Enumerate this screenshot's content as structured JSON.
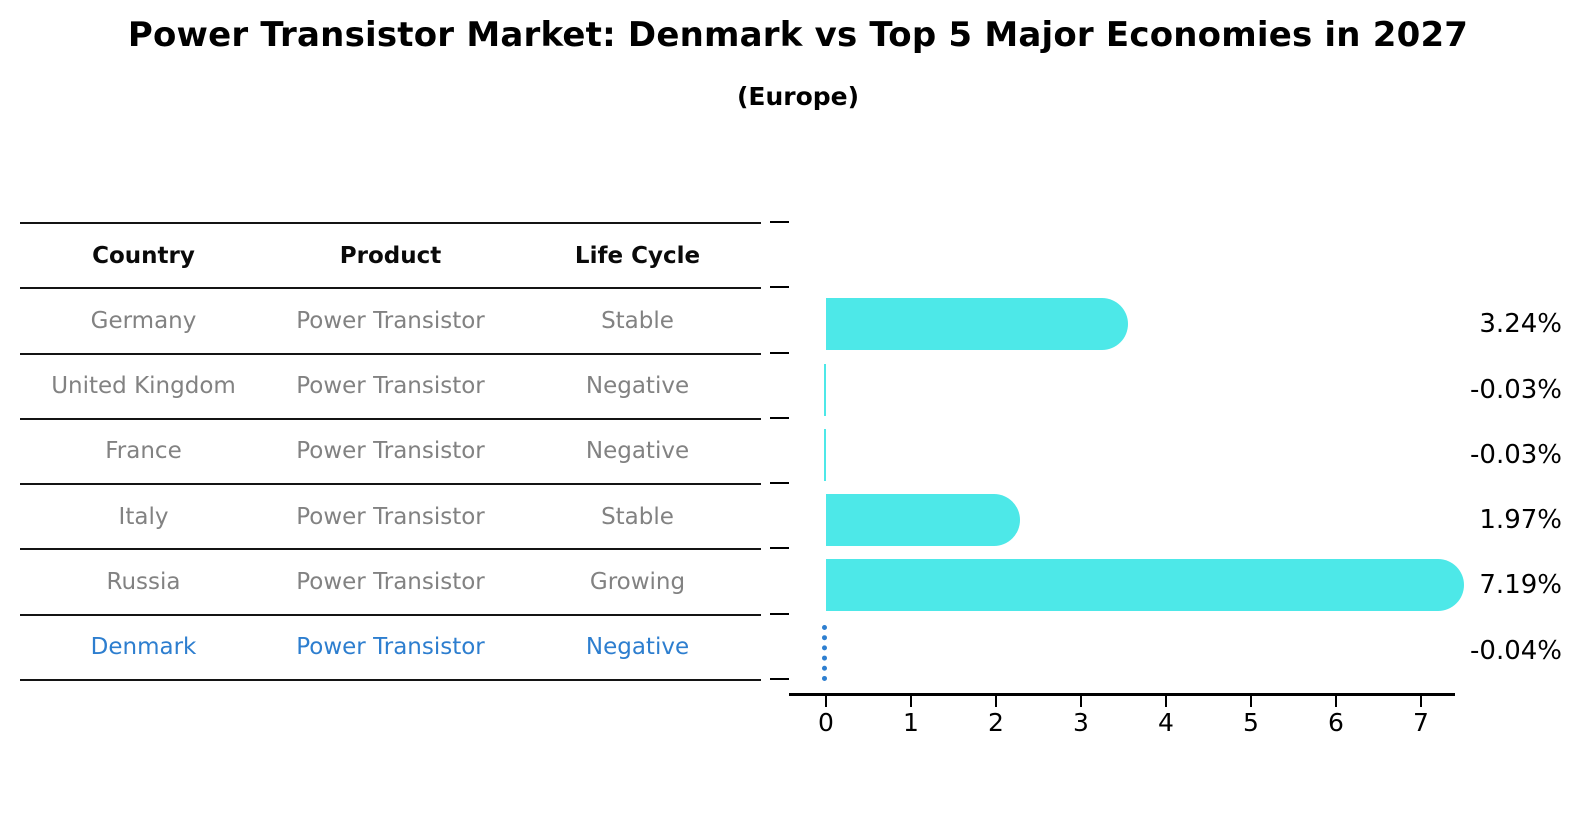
{
  "header": {
    "title": "Power Transistor Market: Denmark vs Top 5 Major Economies in 2027",
    "subtitle": "(Europe)"
  },
  "table": {
    "columns": [
      "Country",
      "Product",
      "Life Cycle"
    ],
    "rows": [
      {
        "country": "Germany",
        "product": "Power Transistor",
        "life_cycle": "Stable",
        "value": 3.24,
        "value_label": "3.24%",
        "highlight": false
      },
      {
        "country": "United Kingdom",
        "product": "Power Transistor",
        "life_cycle": "Negative",
        "value": -0.03,
        "value_label": "-0.03%",
        "highlight": false
      },
      {
        "country": "France",
        "product": "Power Transistor",
        "life_cycle": "Negative",
        "value": -0.03,
        "value_label": "-0.03%",
        "highlight": false
      },
      {
        "country": "Italy",
        "product": "Power Transistor",
        "life_cycle": "Stable",
        "value": 1.97,
        "value_label": "1.97%",
        "highlight": false
      },
      {
        "country": "Russia",
        "product": "Power Transistor",
        "life_cycle": "Growing",
        "value": 7.19,
        "value_label": "7.19%",
        "highlight": false
      },
      {
        "country": "Denmark",
        "product": "Power Transistor",
        "life_cycle": "Negative",
        "value": -0.04,
        "value_label": "-0.04%",
        "highlight": true
      }
    ]
  },
  "chart_data": {
    "type": "bar",
    "orientation": "horizontal",
    "title": "Power Transistor Market: Denmark vs Top 5 Major Economies in 2027",
    "subtitle": "(Europe)",
    "categories": [
      "Germany",
      "United Kingdom",
      "France",
      "Italy",
      "Russia",
      "Denmark"
    ],
    "values": [
      3.24,
      -0.03,
      -0.03,
      1.97,
      7.19,
      -0.04
    ],
    "value_labels": [
      "3.24%",
      "-0.03%",
      "-0.03%",
      "1.97%",
      "7.19%",
      "-0.04%"
    ],
    "unit": "percent CAGR",
    "x_ticks": [
      0,
      1,
      2,
      3,
      4,
      5,
      6,
      7
    ],
    "xlim": [
      -0.45,
      7.45
    ],
    "grid": false,
    "legend": false,
    "highlight_category": "Denmark",
    "highlight_style": "blue dotted marker line at zero"
  },
  "colors": {
    "bar": "#4de8e8",
    "highlight": "#2d7ecf",
    "highlight_dots": "#2e7fd0",
    "table_text": "#828282",
    "header_text": "#0a0a0a",
    "line": "#141414",
    "axis": "#000000",
    "background": "#ffffff"
  }
}
